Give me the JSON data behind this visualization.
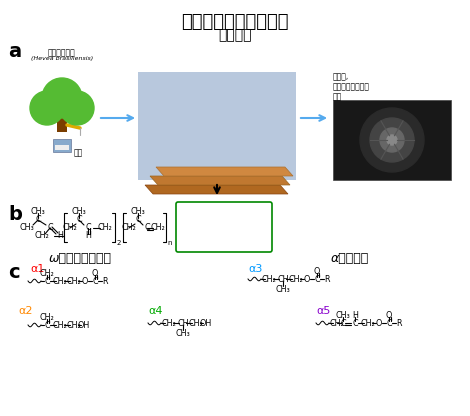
{
  "title_top": "市販の天然ゴムシート",
  "title_sub": "（一部）",
  "label_a": "a",
  "label_b": "b",
  "label_c": "c",
  "tree_label": "パラゴムの木",
  "tree_latin": "(Hevea brasiliensis)",
  "latex_label": "樹液",
  "products_label": "タイヤ,\nエンジンマウント\nなど",
  "omega_label": "ω－末端グループ",
  "alpha_label": "α－末端基",
  "alpha1_color": "#ff0000",
  "alpha2_color": "#ff8800",
  "alpha3_color": "#0099ff",
  "alpha4_color": "#00aa00",
  "alpha5_color": "#8800cc",
  "bg_color": "#ffffff",
  "box_edge_color": "#008800"
}
